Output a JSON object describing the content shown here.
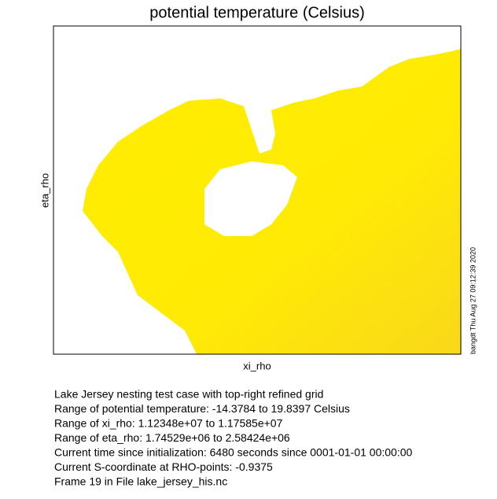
{
  "chart_data": {
    "type": "field",
    "title": "potential temperature (Celsius)",
    "x_label": "xi_rho",
    "y_label": "eta_rho",
    "stamp": "bangdt Thu Aug 27 09:12:39 2020"
  },
  "caption": [
    "Lake Jersey nesting test case with top-right refined grid",
    "Range of potential temperature: -14.3784 to 19.8397 Celsius",
    "Range of xi_rho: 1.12348e+07 to 1.17585e+07",
    "Range of eta_rho: 1.74529e+06 to 2.58424e+06",
    "Current time since initialization: 6480 seconds since 0001-01-01 00:00:00",
    "Current S-coordinate at RHO-points: -0.9375",
    "Frame 19 in File lake_jersey_his.nc"
  ]
}
